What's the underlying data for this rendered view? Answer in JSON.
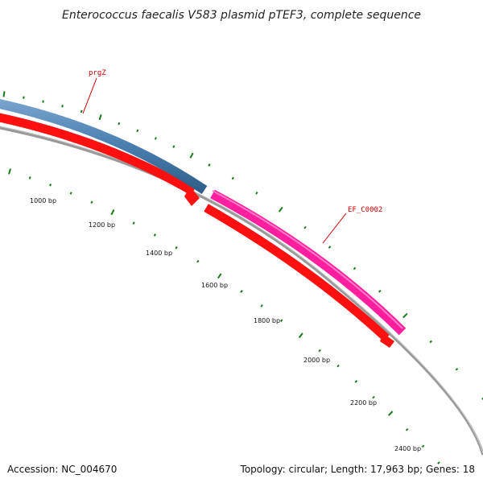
{
  "title": "Enterococcus faecalis V583 plasmid pTEF3, complete sequence",
  "accession": "Accession: NC_004670",
  "summary": "Topology: circular; Length: 17,963 bp; Genes: 18",
  "tick_labels": [
    "1000 bp",
    "1200 bp",
    "1400 bp",
    "1600 bp",
    "1800 bp",
    "2000 bp",
    "2200 bp",
    "2400 bp"
  ],
  "genes": [
    {
      "name": "prgZ",
      "color": "#4a7fb0"
    },
    {
      "name": "EF_C0002",
      "color": "#ff1e9e"
    }
  ],
  "colors": {
    "cds_forward": "#ff1010",
    "backbone": "#888888",
    "ticks": "#1a7a1a",
    "label": "#cc0000"
  }
}
